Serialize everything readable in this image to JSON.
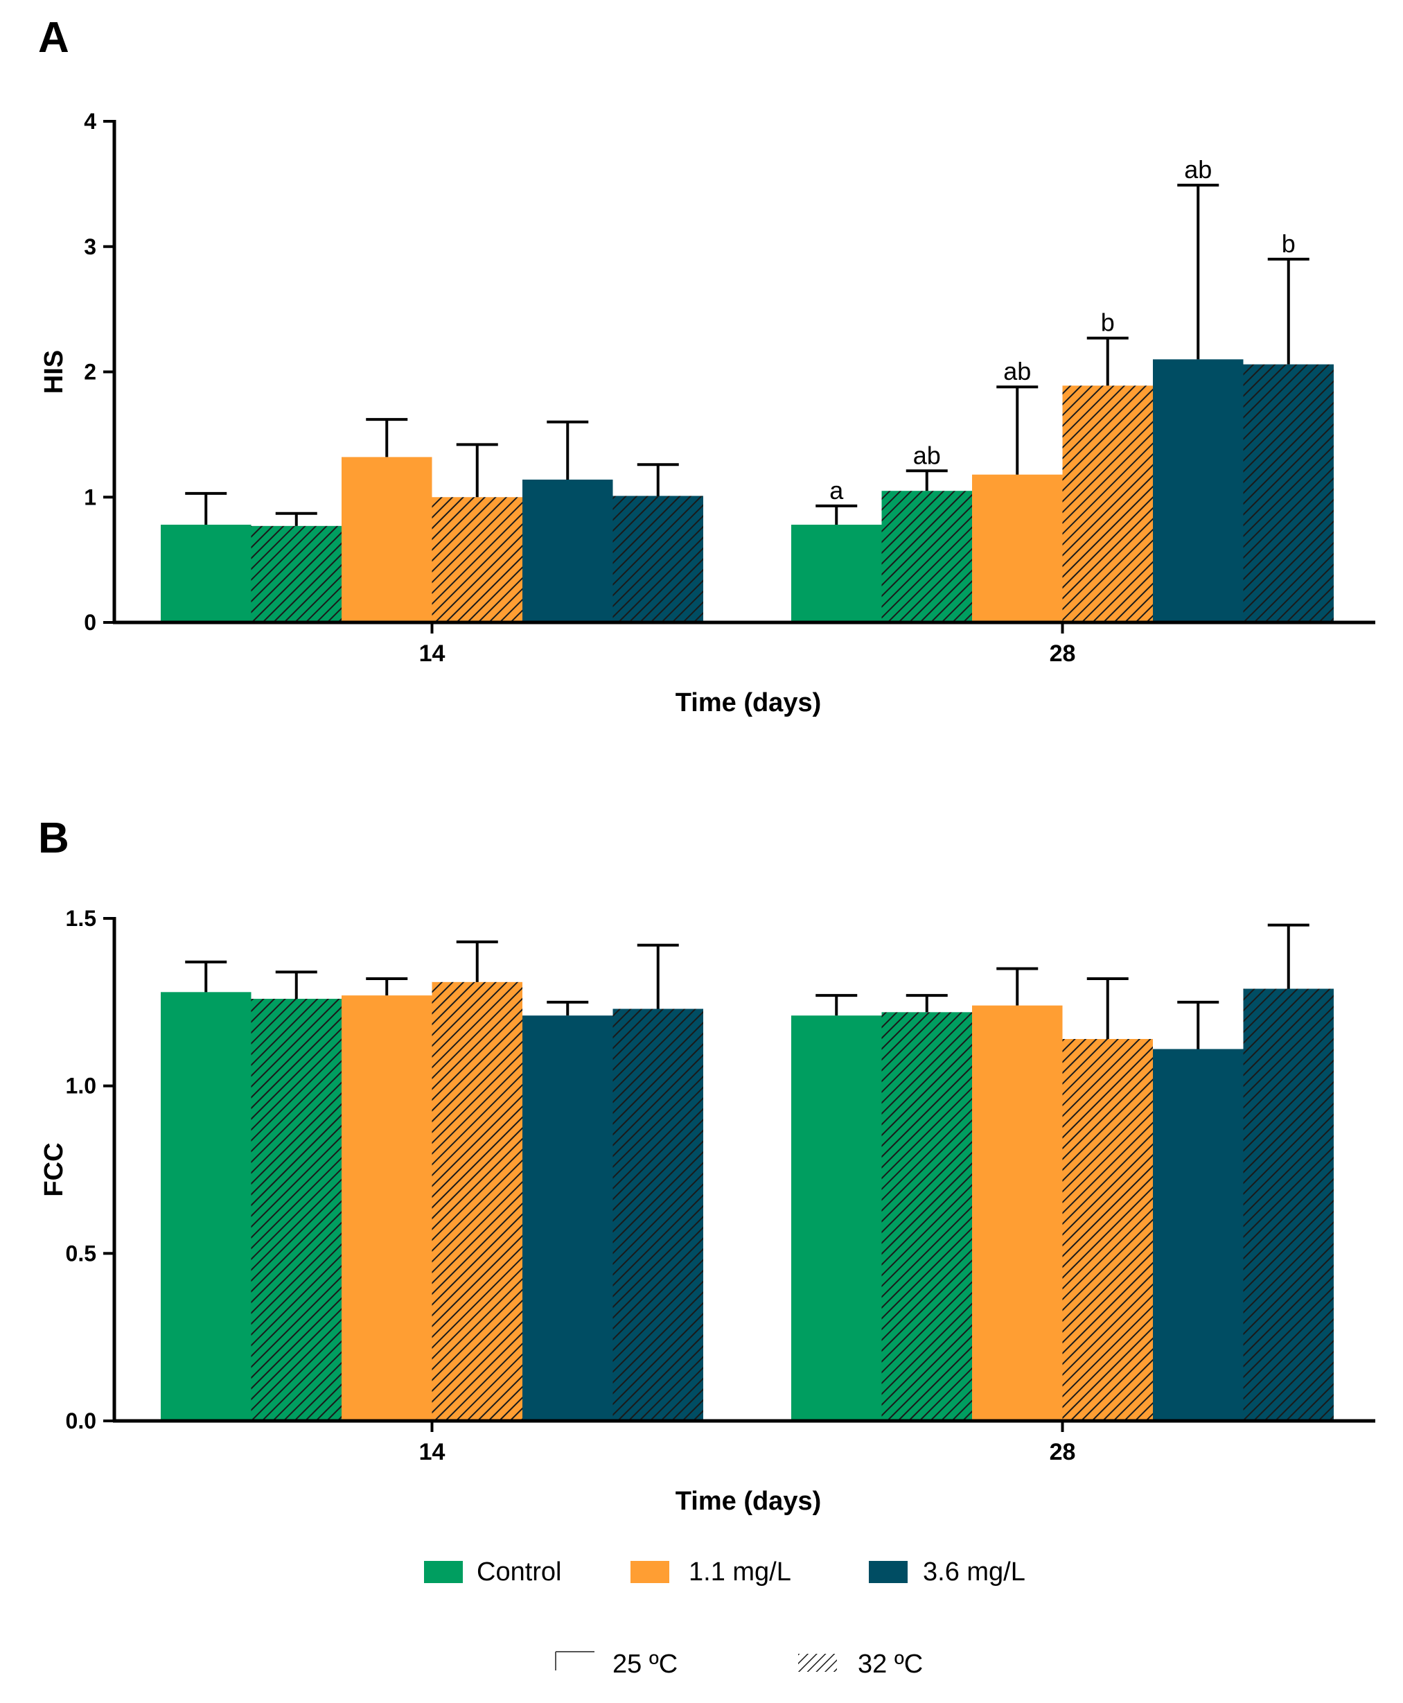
{
  "colors": {
    "control": "#009e60",
    "mg11": "#ff9e33",
    "mg36": "#004d63",
    "axis": "#000000",
    "hatch": "#1a1a1a"
  },
  "legend": {
    "series": [
      "Control",
      "1.1 mg/L",
      "3.6 mg/L"
    ],
    "temperature": [
      "25 ºC",
      "32 ºC"
    ]
  },
  "chart_data": [
    {
      "panel": "A",
      "type": "bar",
      "title": "",
      "xlabel": "Time (days)",
      "ylabel": "HIS",
      "ylim": [
        0,
        4
      ],
      "yticks": [
        "0",
        "1",
        "2",
        "3",
        "4"
      ],
      "categories": [
        "14",
        "28"
      ],
      "series": [
        {
          "name": "Control 25 ºC",
          "group": "Control",
          "temp": "25 ºC",
          "values": [
            0.78,
            0.78
          ],
          "errors": [
            0.25,
            0.15
          ],
          "letters": [
            "",
            "a"
          ]
        },
        {
          "name": "Control 32 ºC",
          "group": "Control",
          "temp": "32 ºC",
          "values": [
            0.77,
            1.05
          ],
          "errors": [
            0.1,
            0.16
          ],
          "letters": [
            "",
            "ab"
          ]
        },
        {
          "name": "1.1 mg/L 25 ºC",
          "group": "1.1 mg/L",
          "temp": "25 ºC",
          "values": [
            1.32,
            1.18
          ],
          "errors": [
            0.3,
            0.7
          ],
          "letters": [
            "",
            "ab"
          ]
        },
        {
          "name": "1.1 mg/L 32 ºC",
          "group": "1.1 mg/L",
          "temp": "32 ºC",
          "values": [
            1.0,
            1.89
          ],
          "errors": [
            0.42,
            0.38
          ],
          "letters": [
            "",
            "b"
          ]
        },
        {
          "name": "3.6 mg/L 25 ºC",
          "group": "3.6 mg/L",
          "temp": "25 ºC",
          "values": [
            1.14,
            2.1
          ],
          "errors": [
            0.46,
            1.39
          ],
          "letters": [
            "",
            "ab"
          ]
        },
        {
          "name": "3.6 mg/L 32 ºC",
          "group": "3.6 mg/L",
          "temp": "32 ºC",
          "values": [
            1.01,
            2.06
          ],
          "errors": [
            0.25,
            0.84
          ],
          "letters": [
            "",
            "b"
          ]
        }
      ]
    },
    {
      "panel": "B",
      "type": "bar",
      "title": "",
      "xlabel": "Time (days)",
      "ylabel": "FCC",
      "ylim": [
        0,
        1.5
      ],
      "yticks": [
        "0.0",
        "0.5",
        "1.0",
        "1.5"
      ],
      "categories": [
        "14",
        "28"
      ],
      "series": [
        {
          "name": "Control 25 ºC",
          "group": "Control",
          "temp": "25 ºC",
          "values": [
            1.28,
            1.21
          ],
          "errors": [
            0.09,
            0.06
          ],
          "letters": [
            "",
            ""
          ]
        },
        {
          "name": "Control 32 ºC",
          "group": "Control",
          "temp": "32 ºC",
          "values": [
            1.26,
            1.22
          ],
          "errors": [
            0.08,
            0.05
          ],
          "letters": [
            "",
            ""
          ]
        },
        {
          "name": "1.1 mg/L 25 ºC",
          "group": "1.1 mg/L",
          "temp": "25 ºC",
          "values": [
            1.27,
            1.24
          ],
          "errors": [
            0.05,
            0.11
          ],
          "letters": [
            "",
            ""
          ]
        },
        {
          "name": "1.1 mg/L 32 ºC",
          "group": "1.1 mg/L",
          "temp": "32 ºC",
          "values": [
            1.31,
            1.14
          ],
          "errors": [
            0.12,
            0.18
          ],
          "letters": [
            "",
            ""
          ]
        },
        {
          "name": "3.6 mg/L 25 ºC",
          "group": "3.6 mg/L",
          "temp": "25 ºC",
          "values": [
            1.21,
            1.11
          ],
          "errors": [
            0.04,
            0.14
          ],
          "letters": [
            "",
            ""
          ]
        },
        {
          "name": "3.6 mg/L 32 ºC",
          "group": "3.6 mg/L",
          "temp": "32 ºC",
          "values": [
            1.23,
            1.29
          ],
          "errors": [
            0.19,
            0.19
          ],
          "letters": [
            "",
            ""
          ]
        }
      ]
    }
  ]
}
